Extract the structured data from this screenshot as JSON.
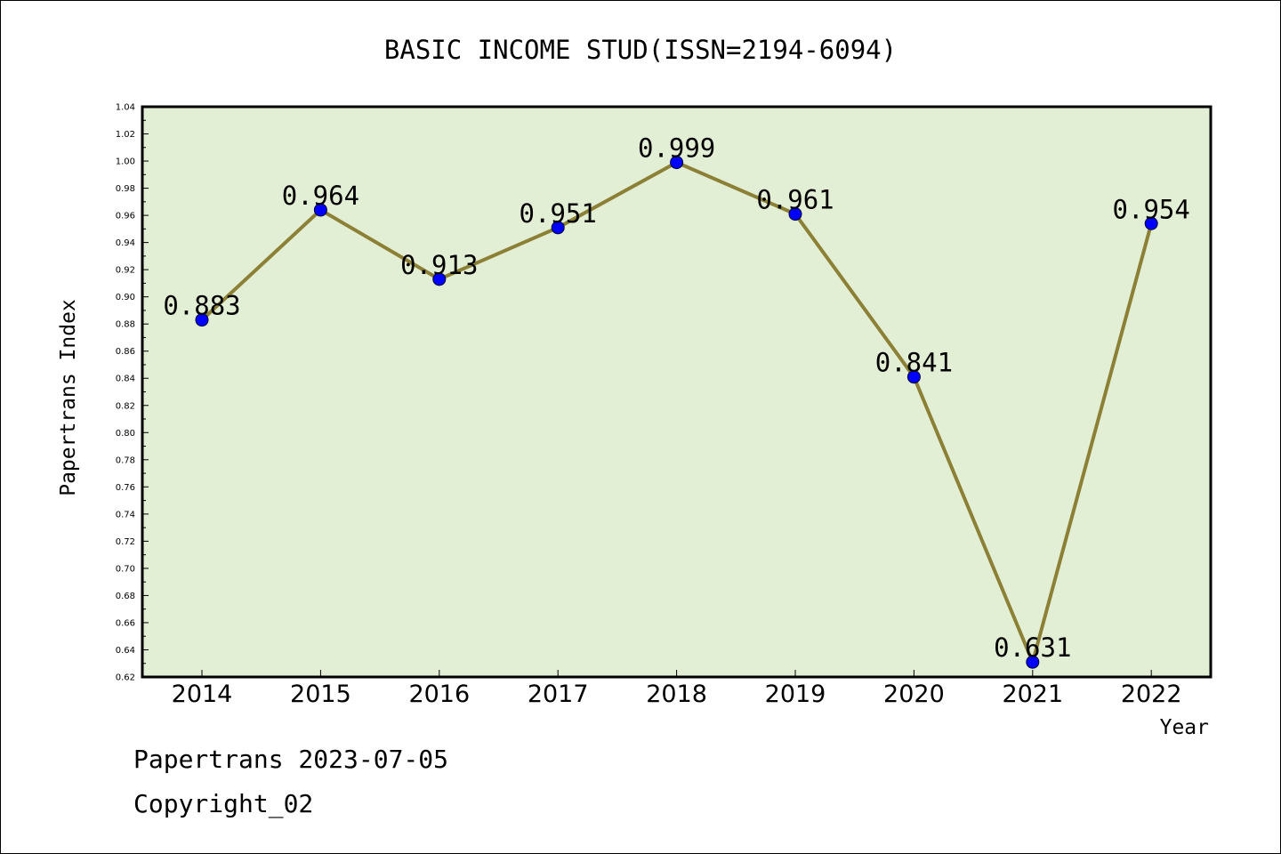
{
  "chart_data": {
    "type": "line",
    "title": "BASIC INCOME STUD(ISSN=2194-6094)",
    "xlabel": "Year",
    "ylabel": "Papertrans Index",
    "categories": [
      "2014",
      "2015",
      "2016",
      "2017",
      "2018",
      "2019",
      "2020",
      "2021",
      "2022"
    ],
    "series": [
      {
        "values": [
          0.883,
          0.964,
          0.913,
          0.951,
          0.999,
          0.961,
          0.841,
          0.631,
          0.954
        ],
        "labels": [
          "0.883",
          "0.964",
          "0.913",
          "0.951",
          "0.999",
          "0.961",
          "0.841",
          "0.631",
          "0.954"
        ]
      }
    ],
    "ylim": [
      0.62,
      1.04
    ],
    "yticks": [
      "0.62",
      "0.64",
      "0.66",
      "0.68",
      "0.70",
      "0.72",
      "0.74",
      "0.76",
      "0.78",
      "0.80",
      "0.82",
      "0.84",
      "0.86",
      "0.88",
      "0.90",
      "0.92",
      "0.94",
      "0.96",
      "0.98",
      "1.00",
      "1.02",
      "1.04"
    ],
    "grid": false,
    "colors": {
      "plot_background": "#e2efd5",
      "line": "#8b8035",
      "marker": "#0000ff",
      "axis": "#000000"
    }
  },
  "footer": {
    "line1": "Papertrans 2023-07-05",
    "line2": "Copyright_02"
  }
}
